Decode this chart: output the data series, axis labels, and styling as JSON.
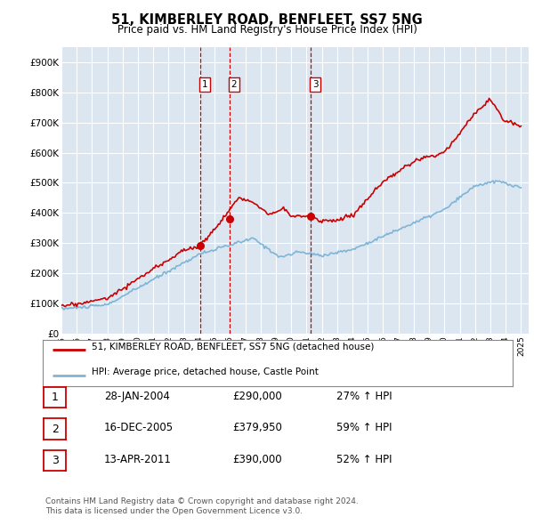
{
  "title": "51, KIMBERLEY ROAD, BENFLEET, SS7 5NG",
  "subtitle": "Price paid vs. HM Land Registry's House Price Index (HPI)",
  "background_color": "#ffffff",
  "plot_bg_color": "#dce6f1",
  "grid_color": "#ffffff",
  "ylim": [
    0,
    950000
  ],
  "yticks": [
    0,
    100000,
    200000,
    300000,
    400000,
    500000,
    600000,
    700000,
    800000,
    900000
  ],
  "ytick_labels": [
    "£0",
    "£100K",
    "£200K",
    "£300K",
    "£400K",
    "£500K",
    "£600K",
    "£700K",
    "£800K",
    "£900K"
  ],
  "vline_color": "#cc0000",
  "red_line_color": "#cc0000",
  "blue_line_color": "#7eb5d6",
  "legend_entries": [
    "51, KIMBERLEY ROAD, BENFLEET, SS7 5NG (detached house)",
    "HPI: Average price, detached house, Castle Point"
  ],
  "table_entries": [
    {
      "num": "1",
      "date": "28-JAN-2004",
      "price": "£290,000",
      "change": "27% ↑ HPI"
    },
    {
      "num": "2",
      "date": "16-DEC-2005",
      "price": "£379,950",
      "change": "59% ↑ HPI"
    },
    {
      "num": "3",
      "date": "13-APR-2011",
      "price": "£390,000",
      "change": "52% ↑ HPI"
    }
  ],
  "footer": "Contains HM Land Registry data © Crown copyright and database right 2024.\nThis data is licensed under the Open Government Licence v3.0.",
  "sale_years": [
    2004.08,
    2005.96,
    2011.28
  ],
  "sale_prices": [
    290000,
    379950,
    390000
  ],
  "sale_labels": [
    "1",
    "2",
    "3"
  ]
}
